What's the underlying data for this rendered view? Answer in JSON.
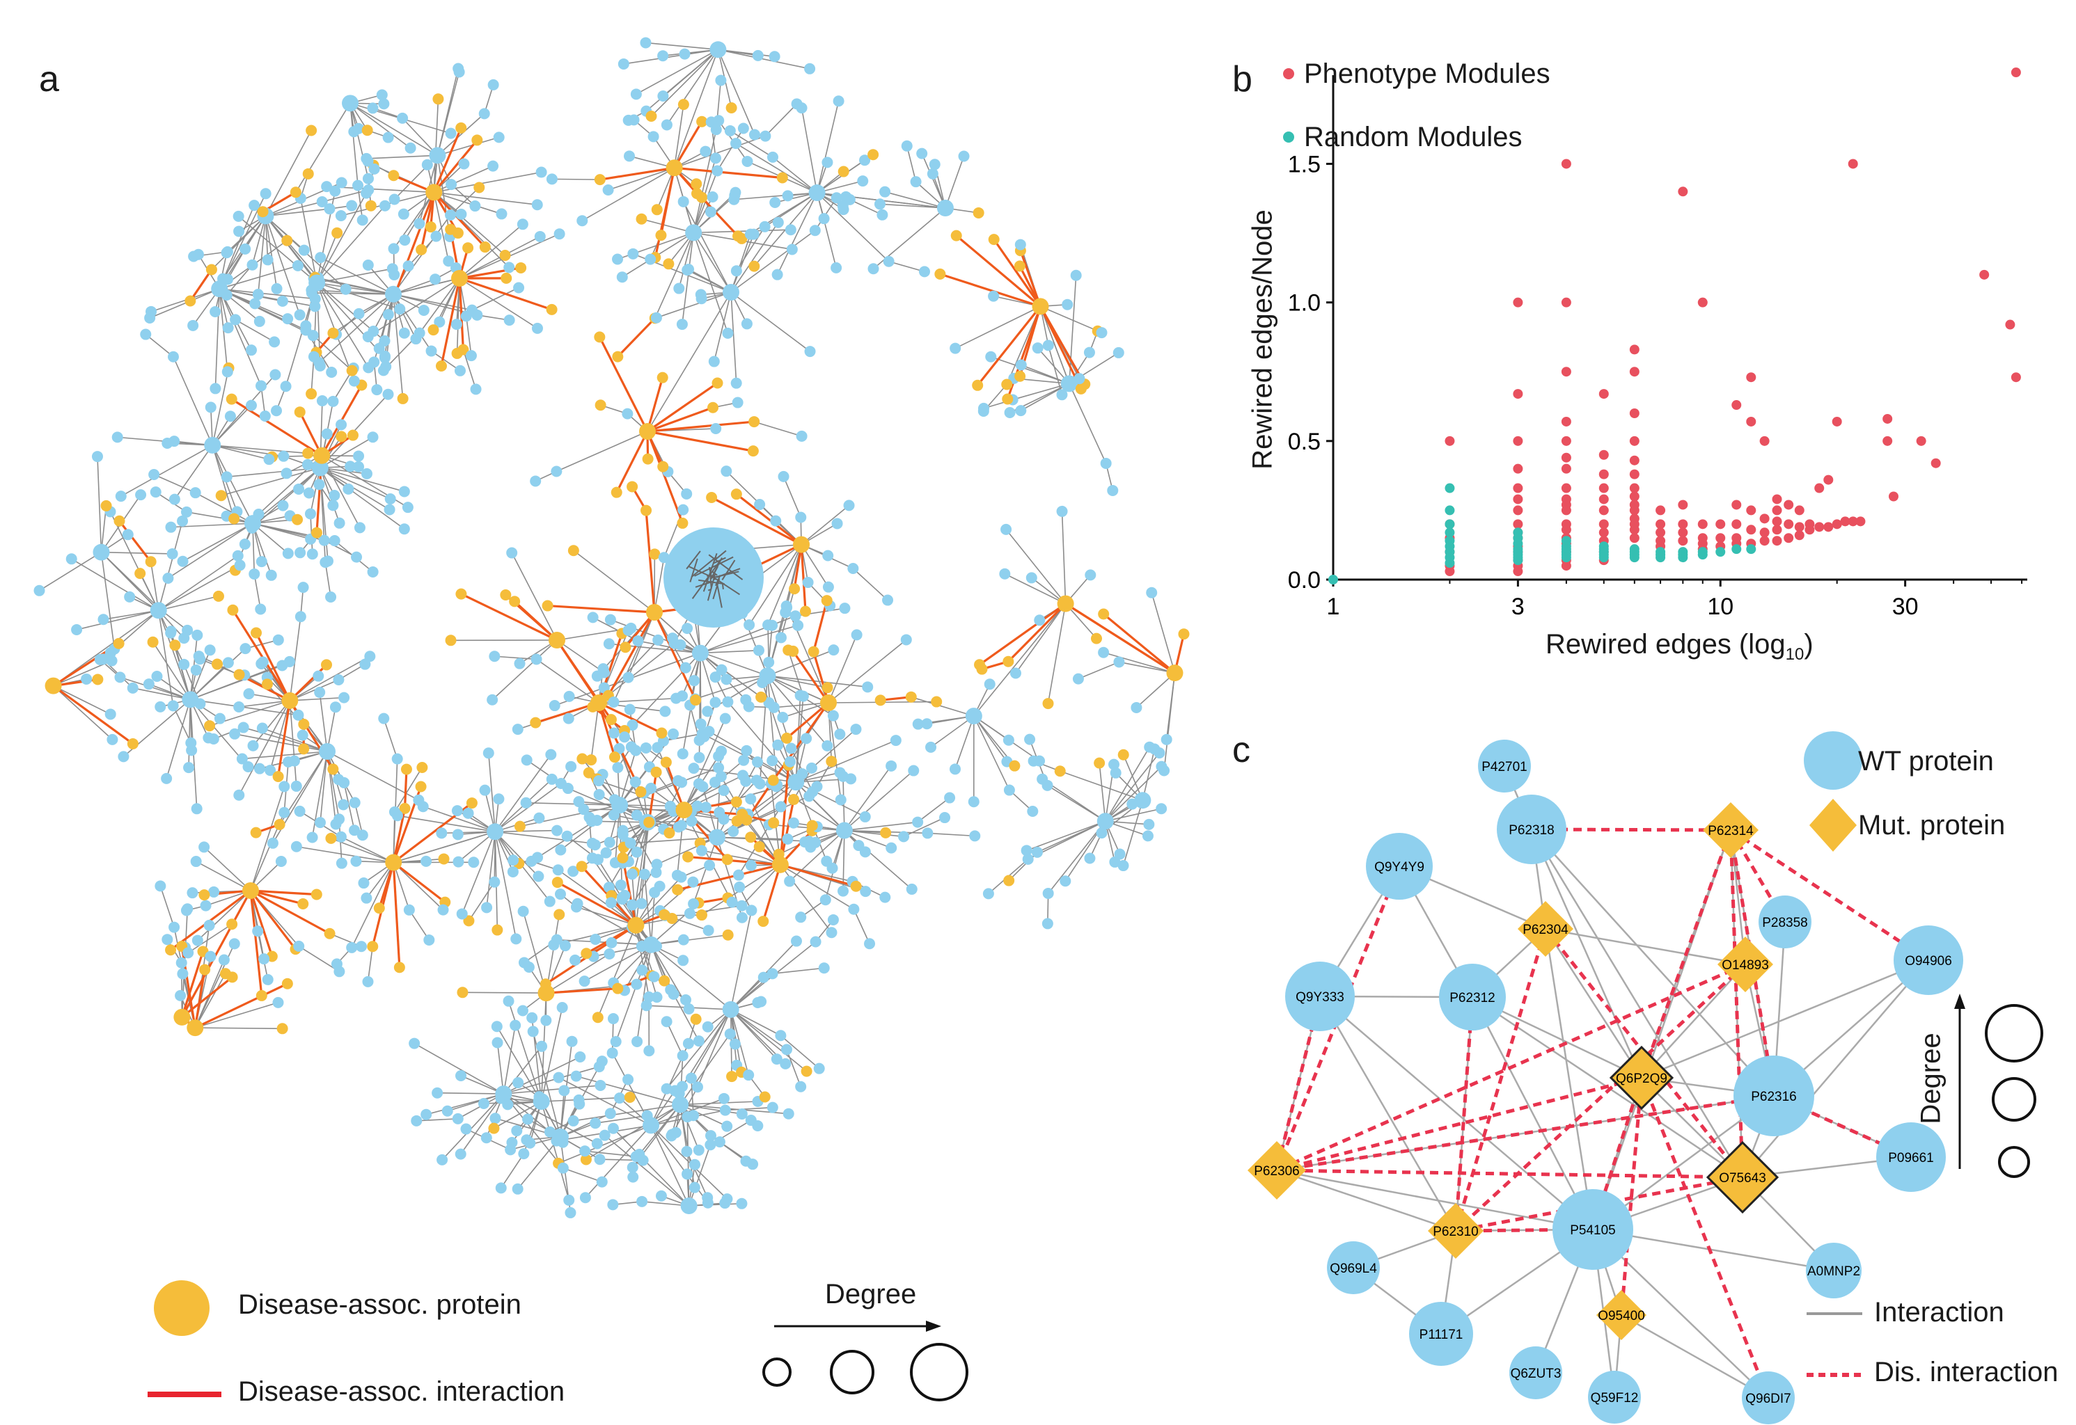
{
  "panels": {
    "a": {
      "letter": "a",
      "legend": {
        "disease_protein": "Disease-assoc. protein",
        "disease_interaction": "Disease-assoc. interaction",
        "degree": "Degree"
      }
    },
    "b": {
      "letter": "b",
      "legend": {
        "phenotype": "Phenotype Modules",
        "random": "Random Modules"
      }
    },
    "c": {
      "letter": "c",
      "legend": {
        "wt": "WT protein",
        "mut": "Mut. protein",
        "interaction": "Interaction",
        "dis_interaction": "Dis. interaction",
        "degree": "Degree"
      },
      "nodes": [
        {
          "id": "P42701",
          "type": "wt"
        },
        {
          "id": "P62318",
          "type": "wt"
        },
        {
          "id": "P62314",
          "type": "mut"
        },
        {
          "id": "Q9Y4Y9",
          "type": "wt"
        },
        {
          "id": "P62304",
          "type": "mut"
        },
        {
          "id": "O14893",
          "type": "mut"
        },
        {
          "id": "P28358",
          "type": "wt"
        },
        {
          "id": "O94906",
          "type": "wt"
        },
        {
          "id": "Q9Y333",
          "type": "wt"
        },
        {
          "id": "P62312",
          "type": "wt"
        },
        {
          "id": "Q6P2Q9",
          "type": "mut"
        },
        {
          "id": "P62316",
          "type": "wt"
        },
        {
          "id": "P62306",
          "type": "mut"
        },
        {
          "id": "O75643",
          "type": "mut"
        },
        {
          "id": "P09661",
          "type": "wt"
        },
        {
          "id": "P62310",
          "type": "mut"
        },
        {
          "id": "P54105",
          "type": "wt"
        },
        {
          "id": "Q969L4",
          "type": "wt"
        },
        {
          "id": "A0MNP2",
          "type": "wt"
        },
        {
          "id": "O95400",
          "type": "mut"
        },
        {
          "id": "P11171",
          "type": "wt"
        },
        {
          "id": "Q6ZUT3",
          "type": "wt"
        },
        {
          "id": "Q59F12",
          "type": "wt"
        },
        {
          "id": "Q96DI7",
          "type": "wt"
        }
      ]
    }
  },
  "colors": {
    "wt": "#8fd0ee",
    "mut": "#f5bd3a",
    "disease_edge": "#ef5a1c",
    "phenotype": "#e8505e",
    "random": "#35bfb2",
    "edge": "#999999",
    "dis_dash": "#e8334e"
  },
  "chart_data": {
    "type": "scatter",
    "title": "",
    "xlabel": "Rewired edges (log10)",
    "xlabel_main": "Rewired edges (log",
    "xlabel_sub": "10",
    "xlabel_close": ")",
    "ylabel": "Rewired edges/Node",
    "x_scale": "log",
    "xlim": [
      1,
      62
    ],
    "ylim": [
      0,
      1.82
    ],
    "x_ticks": [
      1,
      3,
      10,
      30
    ],
    "y_ticks": [
      0.0,
      0.5,
      1.0,
      1.5
    ],
    "x_tick_labels": [
      "1",
      "3",
      "10",
      "30"
    ],
    "y_tick_labels": [
      "0.0",
      "0.5",
      "1.0",
      "1.5"
    ],
    "legend_position": "top-left",
    "series": [
      {
        "name": "Phenotype Modules",
        "points": [
          [
            2,
            0.5
          ],
          [
            2,
            0.2
          ],
          [
            2,
            0.15
          ],
          [
            2,
            0.1
          ],
          [
            2,
            0.05
          ],
          [
            2,
            0.03
          ],
          [
            3,
            1.0
          ],
          [
            3,
            0.67
          ],
          [
            3,
            0.5
          ],
          [
            3,
            0.4
          ],
          [
            3,
            0.33
          ],
          [
            3,
            0.29
          ],
          [
            3,
            0.25
          ],
          [
            3,
            0.2
          ],
          [
            3,
            0.17
          ],
          [
            3,
            0.15
          ],
          [
            3,
            0.12
          ],
          [
            3,
            0.1
          ],
          [
            3,
            0.07
          ],
          [
            3,
            0.05
          ],
          [
            3,
            0.03
          ],
          [
            4,
            1.5
          ],
          [
            4,
            1.0
          ],
          [
            4,
            0.75
          ],
          [
            4,
            0.57
          ],
          [
            4,
            0.5
          ],
          [
            4,
            0.44
          ],
          [
            4,
            0.4
          ],
          [
            4,
            0.33
          ],
          [
            4,
            0.29
          ],
          [
            4,
            0.27
          ],
          [
            4,
            0.25
          ],
          [
            4,
            0.2
          ],
          [
            4,
            0.18
          ],
          [
            4,
            0.15
          ],
          [
            4,
            0.13
          ],
          [
            4,
            0.1
          ],
          [
            4,
            0.07
          ],
          [
            4,
            0.05
          ],
          [
            5,
            0.67
          ],
          [
            5,
            0.45
          ],
          [
            5,
            0.38
          ],
          [
            5,
            0.33
          ],
          [
            5,
            0.29
          ],
          [
            5,
            0.25
          ],
          [
            5,
            0.2
          ],
          [
            5,
            0.17
          ],
          [
            5,
            0.14
          ],
          [
            5,
            0.1
          ],
          [
            5,
            0.07
          ],
          [
            6,
            0.83
          ],
          [
            6,
            0.75
          ],
          [
            6,
            0.6
          ],
          [
            6,
            0.5
          ],
          [
            6,
            0.43
          ],
          [
            6,
            0.38
          ],
          [
            6,
            0.33
          ],
          [
            6,
            0.3
          ],
          [
            6,
            0.27
          ],
          [
            6,
            0.25
          ],
          [
            6,
            0.22
          ],
          [
            6,
            0.2
          ],
          [
            6,
            0.18
          ],
          [
            6,
            0.15
          ],
          [
            7,
            0.25
          ],
          [
            7,
            0.2
          ],
          [
            7,
            0.17
          ],
          [
            7,
            0.14
          ],
          [
            7,
            0.12
          ],
          [
            8,
            1.4
          ],
          [
            8,
            0.27
          ],
          [
            8,
            0.2
          ],
          [
            8,
            0.17
          ],
          [
            8,
            0.14
          ],
          [
            9,
            1.0
          ],
          [
            9,
            0.2
          ],
          [
            9,
            0.15
          ],
          [
            9,
            0.13
          ],
          [
            9,
            0.11
          ],
          [
            10,
            0.2
          ],
          [
            10,
            0.15
          ],
          [
            10,
            0.12
          ],
          [
            11,
            0.63
          ],
          [
            11,
            0.27
          ],
          [
            11,
            0.2
          ],
          [
            11,
            0.15
          ],
          [
            11,
            0.13
          ],
          [
            12,
            0.73
          ],
          [
            12,
            0.57
          ],
          [
            12,
            0.25
          ],
          [
            12,
            0.18
          ],
          [
            12,
            0.13
          ],
          [
            13,
            0.5
          ],
          [
            13,
            0.22
          ],
          [
            13,
            0.17
          ],
          [
            13,
            0.14
          ],
          [
            14,
            0.29
          ],
          [
            14,
            0.25
          ],
          [
            14,
            0.21
          ],
          [
            14,
            0.18
          ],
          [
            14,
            0.14
          ],
          [
            15,
            0.27
          ],
          [
            15,
            0.2
          ],
          [
            15,
            0.15
          ],
          [
            16,
            0.25
          ],
          [
            16,
            0.19
          ],
          [
            16,
            0.16
          ],
          [
            17,
            0.2
          ],
          [
            17,
            0.18
          ],
          [
            18,
            0.33
          ],
          [
            18,
            0.19
          ],
          [
            19,
            0.36
          ],
          [
            19,
            0.19
          ],
          [
            20,
            0.57
          ],
          [
            20,
            0.2
          ],
          [
            21,
            0.21
          ],
          [
            22,
            1.5
          ],
          [
            22,
            0.21
          ],
          [
            23,
            0.21
          ],
          [
            27,
            0.58
          ],
          [
            27,
            0.5
          ],
          [
            28,
            0.3
          ],
          [
            33,
            0.5
          ],
          [
            36,
            0.42
          ],
          [
            48,
            1.1
          ],
          [
            56,
            0.92
          ],
          [
            58,
            1.83
          ],
          [
            58,
            0.73
          ]
        ]
      },
      {
        "name": "Random Modules",
        "points": [
          [
            1,
            0.0
          ],
          [
            2,
            0.33
          ],
          [
            2,
            0.25
          ],
          [
            2,
            0.2
          ],
          [
            2,
            0.17
          ],
          [
            2,
            0.14
          ],
          [
            2,
            0.12
          ],
          [
            2,
            0.1
          ],
          [
            2,
            0.08
          ],
          [
            2,
            0.06
          ],
          [
            3,
            0.17
          ],
          [
            3,
            0.15
          ],
          [
            3,
            0.13
          ],
          [
            3,
            0.11
          ],
          [
            3,
            0.1
          ],
          [
            3,
            0.09
          ],
          [
            3,
            0.08
          ],
          [
            3,
            0.07
          ],
          [
            4,
            0.14
          ],
          [
            4,
            0.12
          ],
          [
            4,
            0.11
          ],
          [
            4,
            0.1
          ],
          [
            4,
            0.09
          ],
          [
            4,
            0.08
          ],
          [
            5,
            0.12
          ],
          [
            5,
            0.11
          ],
          [
            5,
            0.1
          ],
          [
            5,
            0.09
          ],
          [
            5,
            0.08
          ],
          [
            6,
            0.11
          ],
          [
            6,
            0.1
          ],
          [
            6,
            0.09
          ],
          [
            6,
            0.08
          ],
          [
            7,
            0.1
          ],
          [
            7,
            0.09
          ],
          [
            7,
            0.08
          ],
          [
            8,
            0.1
          ],
          [
            8,
            0.09
          ],
          [
            8,
            0.08
          ],
          [
            9,
            0.1
          ],
          [
            9,
            0.09
          ],
          [
            10,
            0.1
          ],
          [
            11,
            0.11
          ],
          [
            12,
            0.11
          ]
        ]
      }
    ]
  }
}
